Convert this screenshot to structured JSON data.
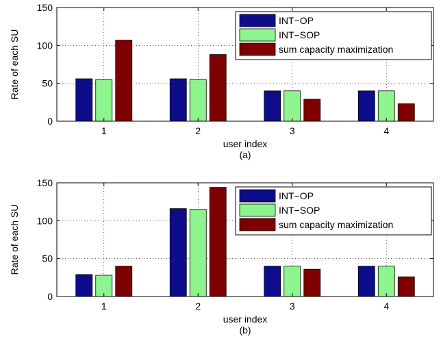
{
  "chart_data": [
    {
      "type": "bar",
      "panel": "(a)",
      "xlabel": "user index",
      "ylabel": "Rate of each SU",
      "categories": [
        "1",
        "2",
        "3",
        "4"
      ],
      "ylim": [
        0,
        150
      ],
      "yticks": [
        0,
        50,
        100,
        150
      ],
      "grid": true,
      "legend_position": "top-right",
      "series": [
        {
          "name": "INT−OP",
          "color": "#0d0d8c",
          "values": [
            56,
            56,
            40,
            40
          ]
        },
        {
          "name": "INT−SOP",
          "color": "#8ef58e",
          "values": [
            55,
            55,
            40,
            40
          ]
        },
        {
          "name": "sum capacity maximization",
          "color": "#7f0000",
          "values": [
            107,
            88,
            29,
            23
          ]
        }
      ]
    },
    {
      "type": "bar",
      "panel": "(b)",
      "xlabel": "user index",
      "ylabel": "Rate of each SU",
      "categories": [
        "1",
        "2",
        "3",
        "4"
      ],
      "ylim": [
        0,
        150
      ],
      "yticks": [
        0,
        50,
        100,
        150
      ],
      "grid": true,
      "legend_position": "top-right",
      "series": [
        {
          "name": "INT−OP",
          "color": "#0d0d8c",
          "values": [
            29,
            116,
            40,
            40
          ]
        },
        {
          "name": "INT−SOP",
          "color": "#8ef58e",
          "values": [
            28,
            115,
            40,
            40
          ]
        },
        {
          "name": "sum capacity maximization",
          "color": "#7f0000",
          "values": [
            40,
            144,
            36,
            26
          ]
        }
      ]
    }
  ]
}
